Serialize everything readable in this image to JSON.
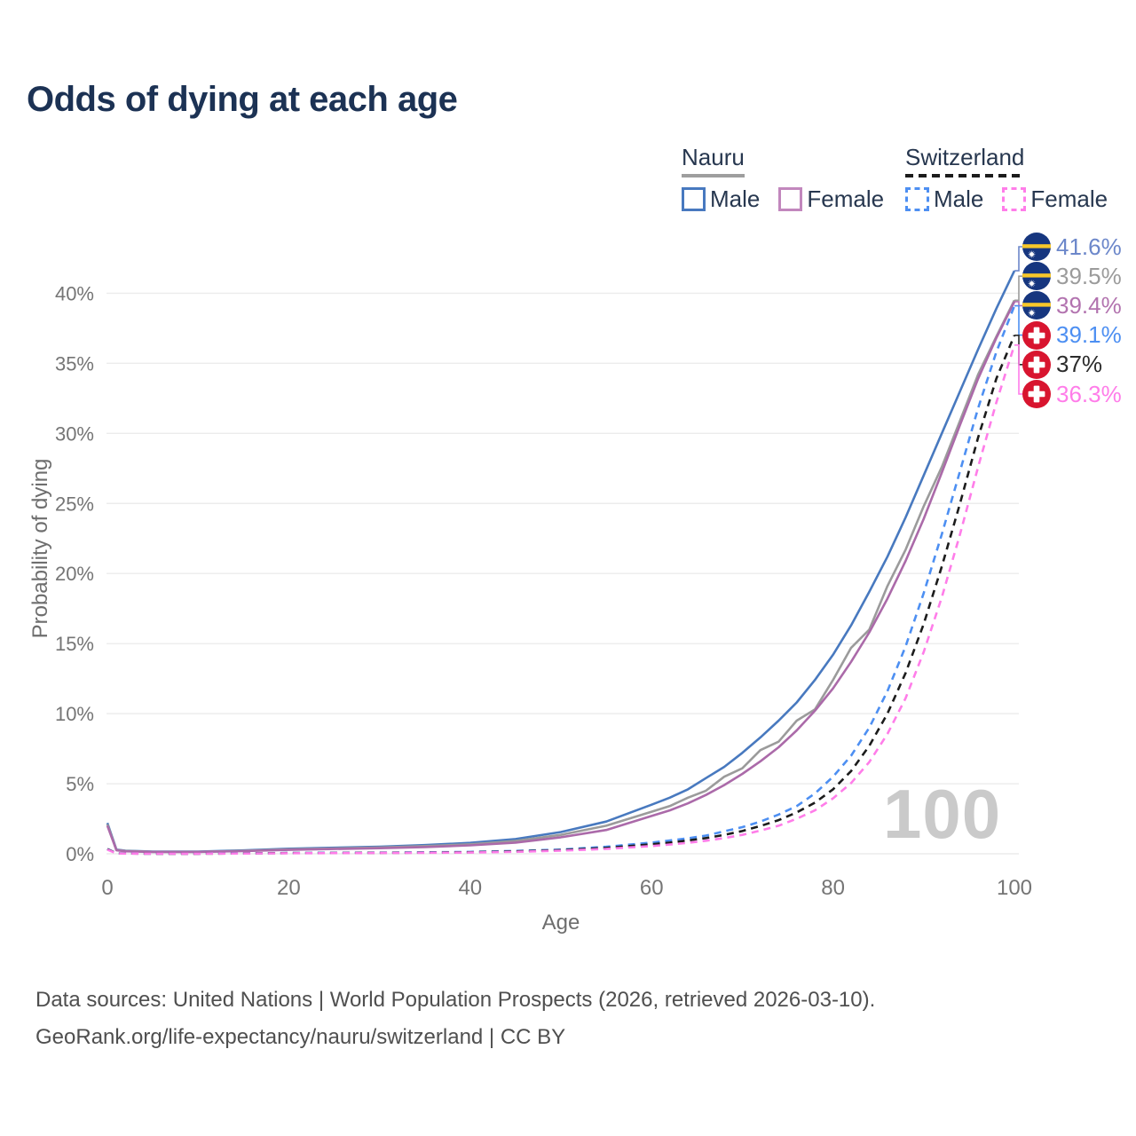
{
  "header": {
    "title": "Odds of dying at each age"
  },
  "legend": {
    "position": "top-right",
    "groups": [
      {
        "label": "Nauru",
        "line_style": "solid",
        "underline_color": "#9e9e9e",
        "items": [
          {
            "label": "Male",
            "color": "#4879bf"
          },
          {
            "label": "Female",
            "color": "#c287bd"
          }
        ]
      },
      {
        "label": "Switzerland",
        "line_style": "dashed",
        "underline_color": "#1c1c1c",
        "items": [
          {
            "label": "Male",
            "color": "#4d8ff2"
          },
          {
            "label": "Female",
            "color": "#ff7de9"
          }
        ]
      }
    ]
  },
  "chart_data": {
    "type": "line",
    "title": "Odds of dying at each age",
    "xlabel": "Age",
    "ylabel": "Probability of dying",
    "xlim": [
      0,
      100
    ],
    "ylim": [
      0,
      43
    ],
    "x_ticks": [
      0,
      20,
      40,
      60,
      80,
      100
    ],
    "y_ticks": [
      "0%",
      "5%",
      "10%",
      "15%",
      "20%",
      "25%",
      "30%",
      "35%",
      "40%"
    ],
    "y_tick_values": [
      0,
      5,
      10,
      15,
      20,
      25,
      30,
      35,
      40
    ],
    "grid": "horizontal",
    "hover_age_label": "100",
    "x": [
      0,
      1,
      2,
      5,
      10,
      15,
      20,
      25,
      30,
      35,
      40,
      45,
      50,
      55,
      60,
      62,
      64,
      66,
      68,
      70,
      72,
      74,
      76,
      78,
      80,
      82,
      84,
      86,
      88,
      90,
      92,
      94,
      96,
      98,
      100
    ],
    "series": [
      {
        "name": "Nauru Male",
        "country": "nauru",
        "color": "#4879bf",
        "dash": false,
        "values": [
          2.2,
          0.3,
          0.22,
          0.16,
          0.16,
          0.24,
          0.36,
          0.43,
          0.5,
          0.62,
          0.78,
          1.05,
          1.55,
          2.3,
          3.5,
          4.0,
          4.6,
          5.4,
          6.2,
          7.2,
          8.3,
          9.5,
          10.8,
          12.4,
          14.2,
          16.3,
          18.7,
          21.2,
          24.0,
          27.0,
          30.0,
          33.0,
          36.0,
          38.9,
          41.6
        ]
      },
      {
        "name": "Nauru",
        "country": "nauru",
        "color": "#9b9b9b",
        "dash": false,
        "values": [
          2.1,
          0.27,
          0.2,
          0.14,
          0.14,
          0.21,
          0.31,
          0.38,
          0.45,
          0.55,
          0.68,
          0.92,
          1.35,
          2.0,
          3.0,
          3.4,
          4.0,
          4.5,
          5.5,
          6.1,
          7.4,
          8.0,
          9.5,
          10.3,
          12.4,
          14.7,
          16.0,
          19.1,
          21.7,
          24.8,
          27.6,
          30.9,
          34.2,
          36.9,
          39.5
        ]
      },
      {
        "name": "Nauru Female",
        "country": "nauru",
        "color": "#ab6aa9",
        "dash": false,
        "values": [
          2.0,
          0.25,
          0.18,
          0.13,
          0.13,
          0.19,
          0.28,
          0.34,
          0.4,
          0.48,
          0.6,
          0.8,
          1.18,
          1.7,
          2.7,
          3.1,
          3.6,
          4.2,
          4.9,
          5.7,
          6.6,
          7.6,
          8.8,
          10.2,
          11.8,
          13.7,
          15.8,
          18.2,
          20.9,
          23.9,
          27.2,
          30.6,
          33.9,
          36.8,
          39.4
        ]
      },
      {
        "name": "Switzerland Male",
        "country": "switzerland",
        "color": "#4d8ff2",
        "dash": true,
        "values": [
          0.35,
          0.03,
          0.02,
          0.01,
          0.01,
          0.03,
          0.06,
          0.07,
          0.08,
          0.1,
          0.13,
          0.2,
          0.3,
          0.5,
          0.8,
          0.95,
          1.1,
          1.3,
          1.6,
          1.9,
          2.3,
          2.8,
          3.4,
          4.3,
          5.5,
          7.0,
          9.0,
          11.6,
          14.8,
          18.6,
          22.8,
          27.3,
          31.8,
          35.8,
          39.1
        ]
      },
      {
        "name": "Switzerland",
        "country": "switzerland",
        "color": "#1c1c1c",
        "dash": true,
        "values": [
          0.33,
          0.028,
          0.018,
          0.009,
          0.009,
          0.025,
          0.05,
          0.06,
          0.07,
          0.085,
          0.11,
          0.17,
          0.26,
          0.42,
          0.68,
          0.8,
          0.95,
          1.12,
          1.35,
          1.62,
          1.98,
          2.4,
          2.95,
          3.65,
          4.6,
          5.9,
          7.7,
          10.0,
          12.9,
          16.4,
          20.5,
          25.0,
          29.7,
          33.9,
          37.0
        ]
      },
      {
        "name": "Switzerland Female",
        "country": "switzerland",
        "color": "#ff7de9",
        "dash": true,
        "values": [
          0.3,
          0.025,
          0.015,
          0.008,
          0.008,
          0.02,
          0.04,
          0.05,
          0.055,
          0.07,
          0.09,
          0.14,
          0.22,
          0.35,
          0.55,
          0.66,
          0.78,
          0.93,
          1.12,
          1.35,
          1.65,
          2.0,
          2.5,
          3.1,
          3.95,
          5.05,
          6.55,
          8.55,
          11.1,
          14.4,
          18.3,
          22.8,
          27.6,
          32.2,
          36.3
        ]
      }
    ],
    "end_labels": [
      {
        "text": "41.6%",
        "value": 41.6,
        "flag": "nauru",
        "color": "#6c87ca"
      },
      {
        "text": "39.5%",
        "value": 39.5,
        "flag": "nauru",
        "color": "#9b9b9b"
      },
      {
        "text": "39.4%",
        "value": 39.4,
        "flag": "nauru",
        "color": "#b273af"
      },
      {
        "text": "39.1%",
        "value": 39.1,
        "flag": "switzerland",
        "color": "#4d8ff2"
      },
      {
        "text": "37%",
        "value": 37.0,
        "flag": "switzerland",
        "color": "#2b2b2b"
      },
      {
        "text": "36.3%",
        "value": 36.3,
        "flag": "switzerland",
        "color": "#ff7de9"
      }
    ]
  },
  "footer": {
    "line1": "Data sources: United Nations | World Population Prospects (2026, retrieved 2026-03-10).",
    "line2": "GeoRank.org/life-expectancy/nauru/switzerland | CC BY"
  }
}
